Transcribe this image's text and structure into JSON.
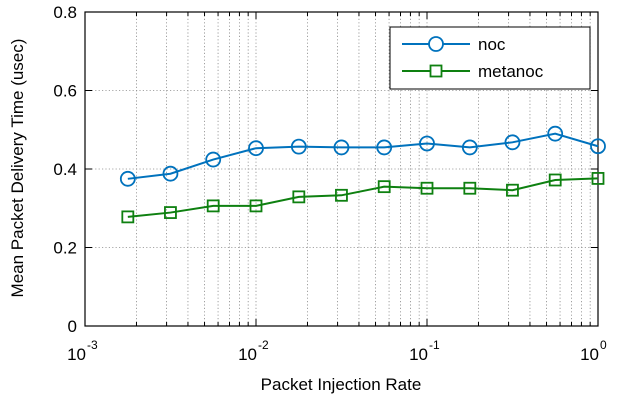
{
  "chart_data": {
    "type": "line",
    "xlabel": "Packet Injection Rate",
    "ylabel": "Mean Packet Delivery Time (usec)",
    "xscale": "log",
    "xlim": [
      0.001,
      1
    ],
    "ylim": [
      0,
      0.8
    ],
    "grid": true,
    "legend_position": "top-right",
    "x_ticks": [
      {
        "value": 0.001,
        "base": "10",
        "exp": "-3"
      },
      {
        "value": 0.01,
        "base": "10",
        "exp": "-2"
      },
      {
        "value": 0.1,
        "base": "10",
        "exp": "-1"
      },
      {
        "value": 1,
        "base": "10",
        "exp": "0"
      }
    ],
    "y_ticks": [
      {
        "value": 0,
        "label": "0"
      },
      {
        "value": 0.2,
        "label": "0.2"
      },
      {
        "value": 0.4,
        "label": "0.4"
      },
      {
        "value": 0.6,
        "label": "0.6"
      },
      {
        "value": 0.8,
        "label": "0.8"
      }
    ],
    "x": [
      0.00178,
      0.00316,
      0.00562,
      0.01,
      0.0178,
      0.0316,
      0.0562,
      0.1,
      0.178,
      0.316,
      0.562,
      1.0
    ],
    "series": [
      {
        "name": "noc",
        "color": "#0072bd",
        "marker": "circle",
        "values": [
          0.375,
          0.388,
          0.424,
          0.453,
          0.457,
          0.455,
          0.455,
          0.465,
          0.455,
          0.468,
          0.49,
          0.458
        ]
      },
      {
        "name": "metanoc",
        "color": "#0e8010",
        "marker": "square",
        "values": [
          0.278,
          0.289,
          0.306,
          0.306,
          0.329,
          0.333,
          0.355,
          0.351,
          0.351,
          0.346,
          0.372,
          0.376
        ]
      }
    ]
  }
}
